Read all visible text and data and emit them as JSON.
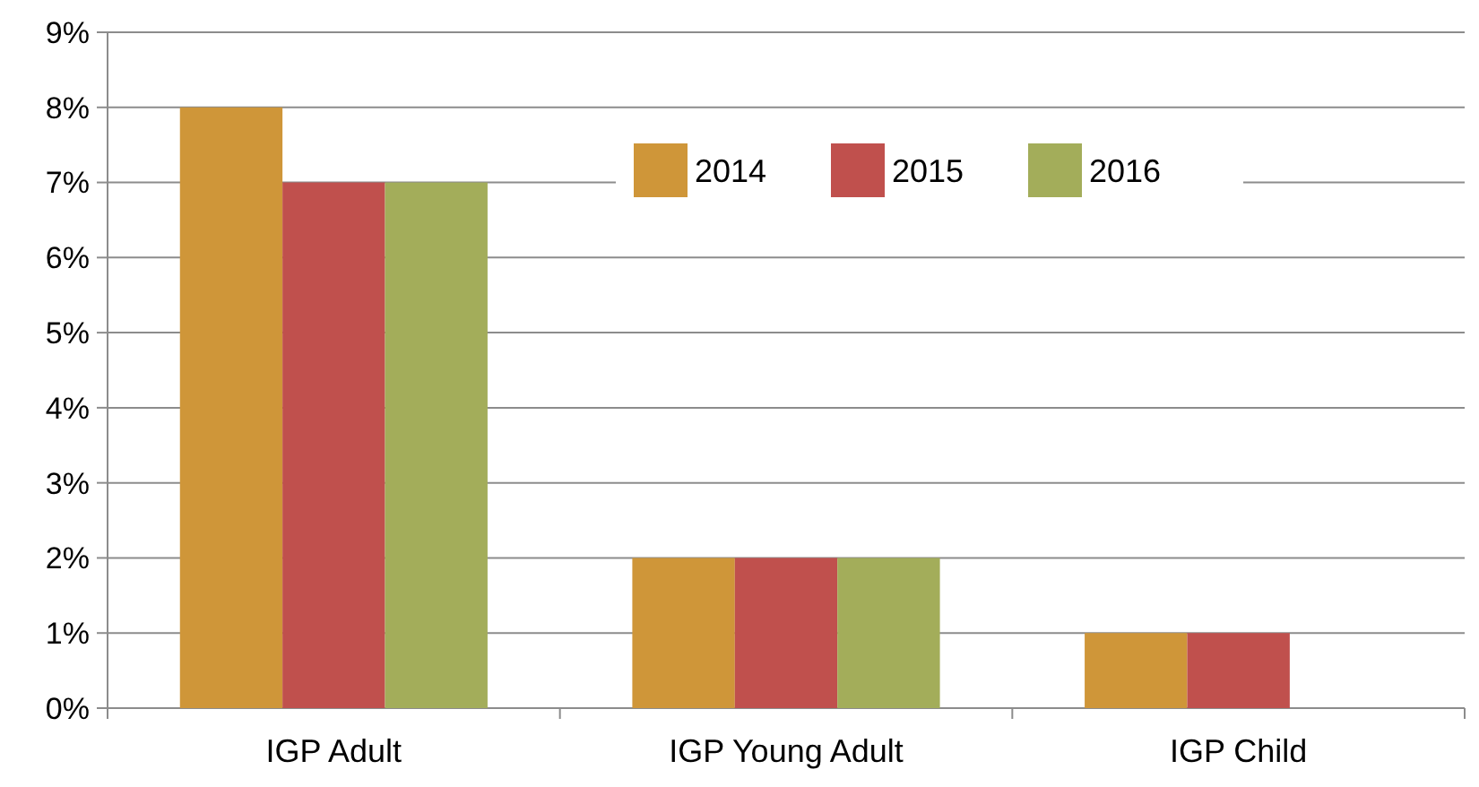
{
  "chart_data": {
    "type": "bar",
    "categories": [
      "IGP Adult",
      "IGP Young Adult",
      "IGP Child"
    ],
    "series": [
      {
        "name": "2014",
        "color": "#cf9639",
        "values": [
          8,
          2,
          1
        ]
      },
      {
        "name": "2015",
        "color": "#c0504d",
        "values": [
          7,
          2,
          1
        ]
      },
      {
        "name": "2016",
        "color": "#a3ad5a",
        "values": [
          7,
          2,
          null
        ]
      }
    ],
    "ylim": [
      0,
      9
    ],
    "yticks": [
      {
        "value": 0,
        "label": "0%"
      },
      {
        "value": 1,
        "label": "1%"
      },
      {
        "value": 2,
        "label": "2%"
      },
      {
        "value": 3,
        "label": "3%"
      },
      {
        "value": 4,
        "label": "4%"
      },
      {
        "value": 5,
        "label": "5%"
      },
      {
        "value": 6,
        "label": "6%"
      },
      {
        "value": 7,
        "label": "7%"
      },
      {
        "value": 8,
        "label": "8%"
      },
      {
        "value": 9,
        "label": "9%"
      }
    ],
    "grid": "y",
    "legend": "top"
  }
}
